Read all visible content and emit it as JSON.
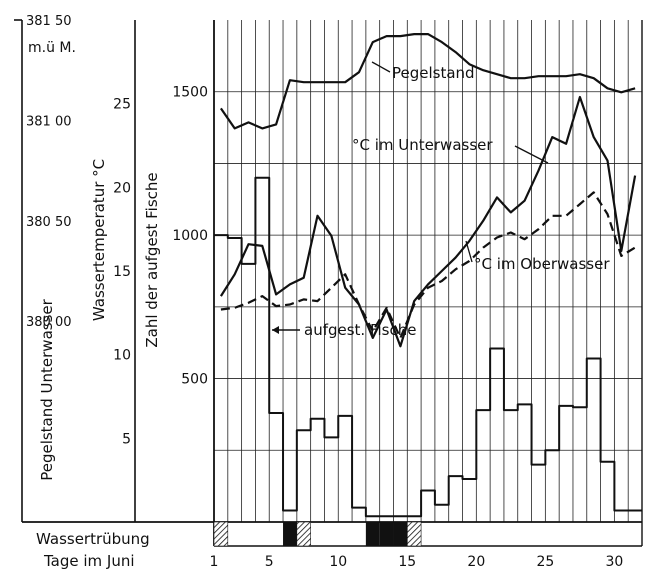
{
  "chart_data": {
    "type": "line",
    "x": [
      1,
      2,
      3,
      4,
      5,
      6,
      7,
      8,
      9,
      10,
      11,
      12,
      13,
      14,
      15,
      16,
      17,
      18,
      19,
      20,
      21,
      22,
      23,
      24,
      25,
      26,
      27,
      28,
      29,
      30,
      31
    ],
    "xticks": [
      "1",
      "5",
      "10",
      "15",
      "20",
      "25",
      "30"
    ],
    "xlabel": "Tage im Juni",
    "y_axes": {
      "pegel": {
        "title": "Pegelstand Unterwasser",
        "unit": "m.ü M.",
        "ticks": [
          "381 50",
          "381 00",
          "380 50",
          "380 00"
        ],
        "range": [
          379.0,
          381.5
        ]
      },
      "temp": {
        "title": "Wassertemperatur °C",
        "ticks": [
          "25",
          "20",
          "15",
          "10",
          "5"
        ],
        "range": [
          0,
          30
        ]
      },
      "fische": {
        "title": "Zahl der aufgest Fische",
        "ticks": [
          "1500",
          "1000",
          "500"
        ],
        "range": [
          0,
          1750
        ]
      }
    },
    "series": [
      {
        "name": "Pegelstand",
        "axis": "pegel",
        "style": "solid",
        "values": [
          381.06,
          380.96,
          380.99,
          380.96,
          380.98,
          381.2,
          381.19,
          381.19,
          381.19,
          381.19,
          381.24,
          381.39,
          381.42,
          381.42,
          381.43,
          381.43,
          381.39,
          381.34,
          381.28,
          381.25,
          381.23,
          381.21,
          381.21,
          381.22,
          381.22,
          381.22,
          381.23,
          381.21,
          381.16,
          381.14,
          381.16
        ]
      },
      {
        "name": "°C im Unterwasser",
        "axis": "temp",
        "style": "solid",
        "values": [
          13.5,
          14.8,
          16.6,
          16.5,
          13.6,
          14.2,
          14.6,
          18.3,
          17.1,
          14.0,
          13.0,
          11.0,
          12.7,
          10.5,
          13.2,
          14.2,
          15.0,
          15.8,
          16.8,
          18.0,
          19.4,
          18.5,
          19.2,
          21.0,
          23.0,
          22.6,
          25.4,
          23.0,
          21.6,
          16.2,
          20.7
        ]
      },
      {
        "name": "°C im Oberwasser",
        "axis": "temp",
        "style": "dashed",
        "values": [
          12.7,
          12.8,
          13.1,
          13.5,
          12.9,
          13.0,
          13.3,
          13.2,
          14.0,
          14.8,
          13.0,
          11.4,
          12.8,
          11.0,
          13.0,
          14.0,
          14.4,
          15.1,
          15.6,
          16.4,
          17.0,
          17.3,
          16.9,
          17.5,
          18.3,
          18.3,
          19.0,
          19.7,
          18.4,
          15.9,
          16.4
        ]
      },
      {
        "name": "aufgest. Fische",
        "axis": "fische",
        "style": "step",
        "values": [
          1000,
          990,
          900,
          1200,
          380,
          40,
          320,
          360,
          295,
          370,
          50,
          20,
          20,
          20,
          20,
          110,
          60,
          160,
          150,
          390,
          605,
          390,
          410,
          200,
          250,
          405,
          400,
          570,
          210,
          40,
          40
        ]
      }
    ],
    "wassertruebung": {
      "label": "Wassertrübung",
      "dark_days": [
        6,
        12,
        13,
        14
      ],
      "hatched_days": [
        1,
        7,
        15
      ]
    }
  }
}
